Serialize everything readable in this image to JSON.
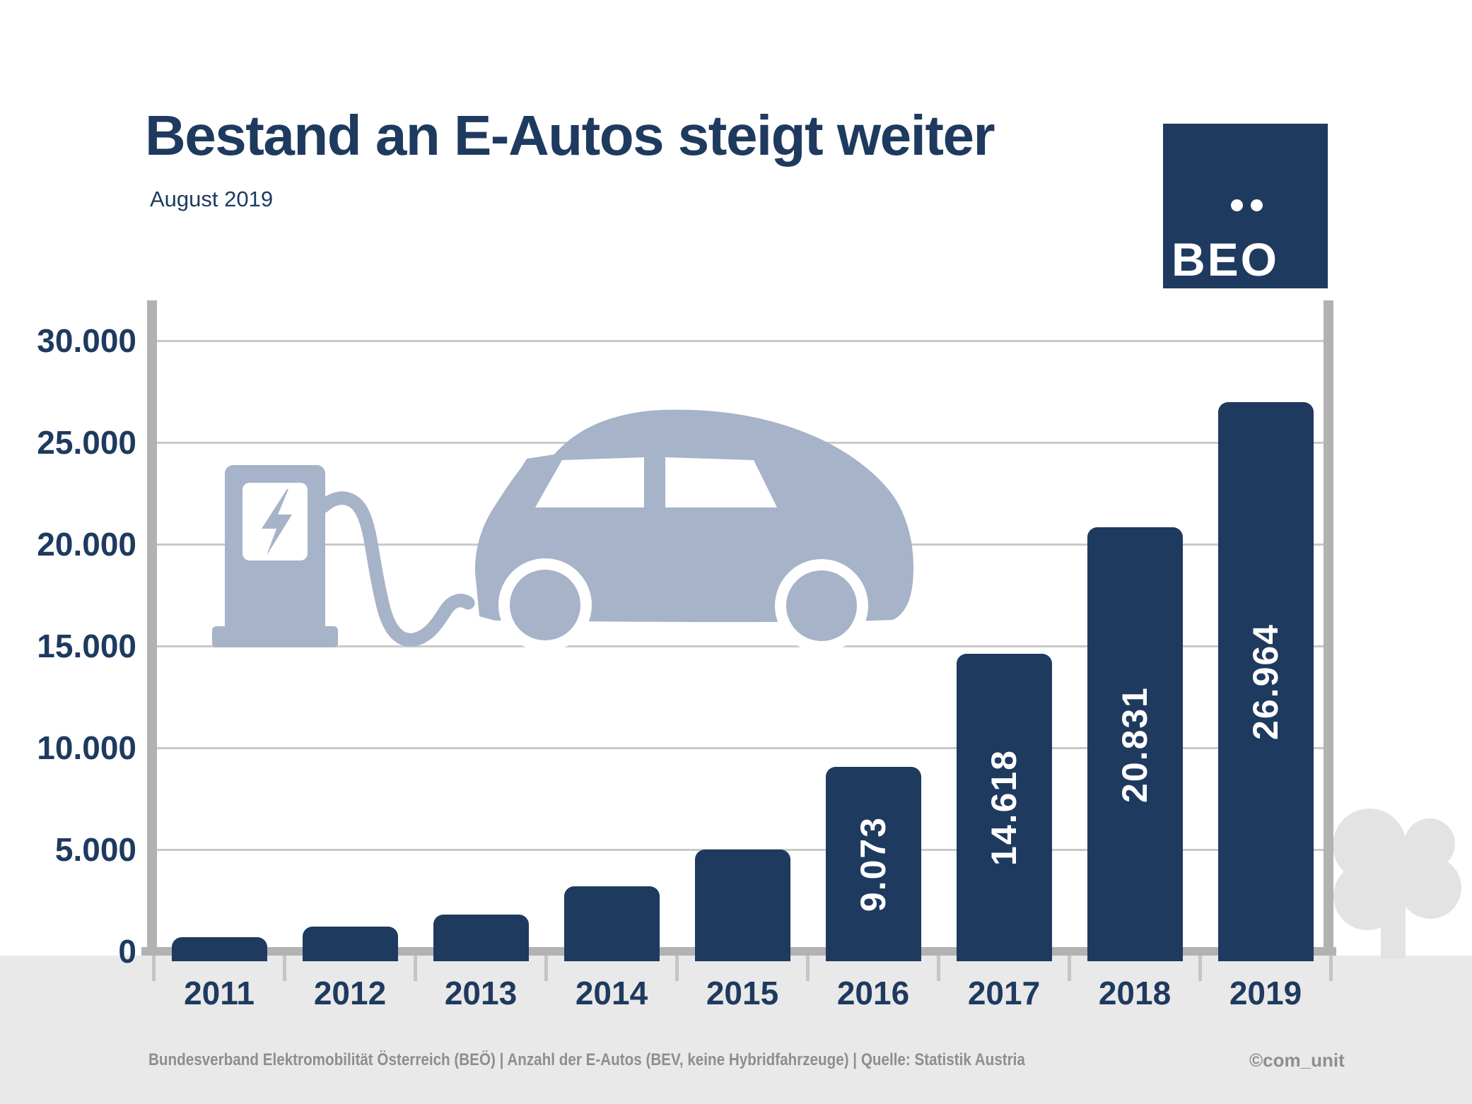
{
  "title": "Bestand an E-Autos steigt weiter",
  "subtitle": "August 2019",
  "logo": {
    "text": "BEO"
  },
  "chart_data": {
    "type": "bar",
    "title": "Bestand an E-Autos steigt weiter",
    "subtitle": "August 2019",
    "categories": [
      "2011",
      "2012",
      "2013",
      "2014",
      "2015",
      "2016",
      "2017",
      "2018",
      "2019"
    ],
    "values": [
      700,
      1200,
      1800,
      3200,
      5000,
      9073,
      14618,
      20831,
      26964
    ],
    "bar_labels": [
      null,
      null,
      null,
      null,
      null,
      "9.073",
      "14.618",
      "20.831",
      "26.964"
    ],
    "xlabel": "",
    "ylabel": "",
    "ylim": [
      0,
      30000
    ],
    "yticks": [
      {
        "label": "30.000",
        "value": 30000
      },
      {
        "label": "25.000",
        "value": 25000
      },
      {
        "label": "20.000",
        "value": 20000
      },
      {
        "label": "15.000",
        "value": 15000
      },
      {
        "label": "10.000",
        "value": 10000
      },
      {
        "label": "5.000",
        "value": 5000
      },
      {
        "label": "0",
        "value": 0
      }
    ],
    "grid": true,
    "legend": "none",
    "bar_color": "#1e3a5f",
    "bar_value_label_color": "#ffffff"
  },
  "icons": {
    "charging_station": "ev-charger-with-lightning-bolt-icon",
    "lightning": "lightning-bolt-icon",
    "car": "electric-car-side-icon",
    "tree": "tree-icon",
    "logo_dots": "umlaut-dots-icon"
  },
  "footer": {
    "source": "Bundesverband Elektromobilität Österreich (BEÖ) | Anzahl der E-Autos (BEV, keine Hybridfahrzeuge) | Quelle: Statistik Austria",
    "credit": "©com_unit"
  },
  "colors": {
    "navy": "#1e3a5f",
    "illustration": "#a6b3c9",
    "grid": "#c9c9c9",
    "axis": "#b2b2b2",
    "band": "#e9e9e9",
    "tree": "#e3e3e3",
    "footer_text": "#8e8e8e"
  }
}
